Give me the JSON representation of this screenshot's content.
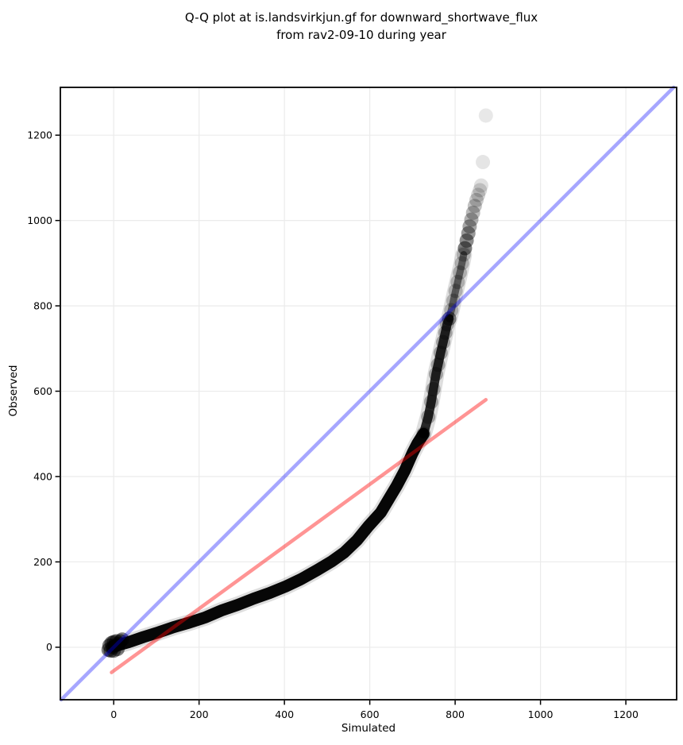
{
  "figure": {
    "title_line1": "Q-Q plot at is.landsvirkjun.gf for downward_shortwave_flux",
    "title_line2": "from rav2-09-10 during year"
  },
  "chart_data": {
    "type": "scatter",
    "title": "Q-Q plot at is.landsvirkjun.gf for downward_shortwave_flux from rav2-09-10 during year",
    "xlabel": "Simulated",
    "ylabel": "Observed",
    "xlim": [
      -125,
      1319
    ],
    "ylim": [
      -123,
      1312
    ],
    "xticks": [
      0,
      200,
      400,
      600,
      800,
      1000,
      1200
    ],
    "yticks": [
      0,
      200,
      400,
      600,
      800,
      1000,
      1200
    ],
    "grid": true,
    "legend": "none",
    "colors": {
      "points": "#000000",
      "identity_line": "#0000ff",
      "identity_opacity": 0.35,
      "fit_line": "#ff0000",
      "fit_opacity": 0.42,
      "grid": "#ebebeb",
      "spine": "#000000",
      "background": "#ffffff"
    },
    "identity_line": {
      "x1": -123,
      "y1": -123,
      "x2": 1312,
      "y2": 1312,
      "label": "1:1 line"
    },
    "fit_line": {
      "x1": -5,
      "y1": -59,
      "x2": 872,
      "y2": 580,
      "slope": 0.73,
      "intercept": -56,
      "label": "linear fit"
    },
    "marker_radius_px": 9,
    "origin_cluster": [
      [
        -12,
        -6
      ],
      [
        -10,
        4
      ],
      [
        -7,
        -8
      ],
      [
        -5,
        10
      ],
      [
        -2,
        0
      ],
      [
        0,
        -8
      ],
      [
        0,
        12
      ],
      [
        3,
        4
      ],
      [
        6,
        14
      ],
      [
        9,
        -4
      ],
      [
        12,
        8
      ],
      [
        16,
        14
      ],
      [
        20,
        18
      ]
    ],
    "band_solid": [
      [
        0,
        2
      ],
      [
        35,
        12
      ],
      [
        70,
        24
      ],
      [
        105,
        35
      ],
      [
        140,
        47
      ],
      [
        178,
        58
      ],
      [
        215,
        70
      ],
      [
        252,
        86
      ],
      [
        290,
        99
      ],
      [
        328,
        114
      ],
      [
        365,
        127
      ],
      [
        402,
        142
      ],
      [
        440,
        160
      ],
      [
        477,
        181
      ],
      [
        512,
        202
      ],
      [
        540,
        222
      ],
      [
        570,
        251
      ],
      [
        598,
        285
      ],
      [
        626,
        316
      ],
      [
        645,
        348
      ],
      [
        663,
        378
      ],
      [
        682,
        414
      ],
      [
        700,
        455
      ],
      [
        712,
        478
      ],
      [
        726,
        500
      ]
    ],
    "band_mid": [
      [
        726,
        500
      ],
      [
        737,
        540
      ],
      [
        744,
        575
      ],
      [
        749,
        605
      ],
      [
        755,
        640
      ],
      [
        760,
        662
      ],
      [
        766,
        690
      ],
      [
        772,
        715
      ],
      [
        777,
        737
      ],
      [
        781,
        757
      ],
      [
        786,
        770
      ]
    ],
    "band_light": [
      [
        786,
        770
      ],
      [
        791,
        790
      ],
      [
        796,
        812
      ],
      [
        801,
        835
      ],
      [
        806,
        856
      ],
      [
        811,
        878
      ],
      [
        816,
        900
      ],
      [
        820,
        920
      ]
    ],
    "sparse_points": [
      [
        823,
        935,
        0.5
      ],
      [
        827,
        953,
        0.45
      ],
      [
        831,
        970,
        0.4
      ],
      [
        834,
        986,
        0.35
      ],
      [
        838,
        1002,
        0.3
      ],
      [
        842,
        1018,
        0.27
      ],
      [
        846,
        1034,
        0.24
      ],
      [
        850,
        1048,
        0.2
      ],
      [
        854,
        1060,
        0.17
      ],
      [
        858,
        1071,
        0.15
      ],
      [
        861,
        1082,
        0.12
      ],
      [
        865,
        1137,
        0.1
      ],
      [
        872,
        1246,
        0.09
      ]
    ]
  }
}
